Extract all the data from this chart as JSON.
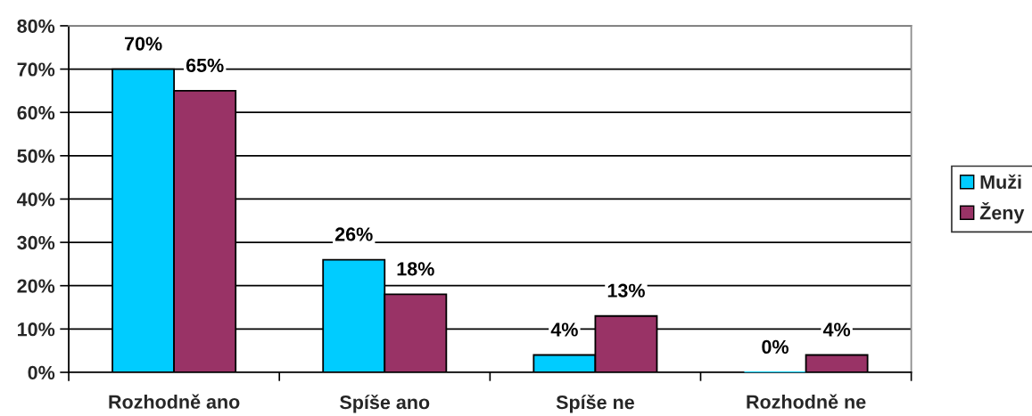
{
  "chart_data": {
    "type": "bar",
    "categories": [
      "Rozhodně ano",
      "Spíše ano",
      "Spíše ne",
      "Rozhodně ne"
    ],
    "series": [
      {
        "name": "Muži",
        "color": "#00ccff",
        "values": [
          70,
          26,
          4,
          0
        ],
        "value_labels": [
          "70%",
          "26%",
          "4%",
          "0%"
        ]
      },
      {
        "name": "Ženy",
        "color": "#993366",
        "values": [
          65,
          18,
          13,
          4
        ],
        "value_labels": [
          "65%",
          "18%",
          "13%",
          "4%"
        ]
      }
    ],
    "ylim": [
      0,
      80
    ],
    "yticks": [
      {
        "value": 0,
        "label": "0%"
      },
      {
        "value": 10,
        "label": "10%"
      },
      {
        "value": 20,
        "label": "20%"
      },
      {
        "value": 30,
        "label": "30%"
      },
      {
        "value": 40,
        "label": "40%"
      },
      {
        "value": 50,
        "label": "50%"
      },
      {
        "value": 60,
        "label": "60%"
      },
      {
        "value": 70,
        "label": "70%"
      },
      {
        "value": 80,
        "label": "80%"
      }
    ],
    "grid": "y",
    "legend": "right"
  }
}
